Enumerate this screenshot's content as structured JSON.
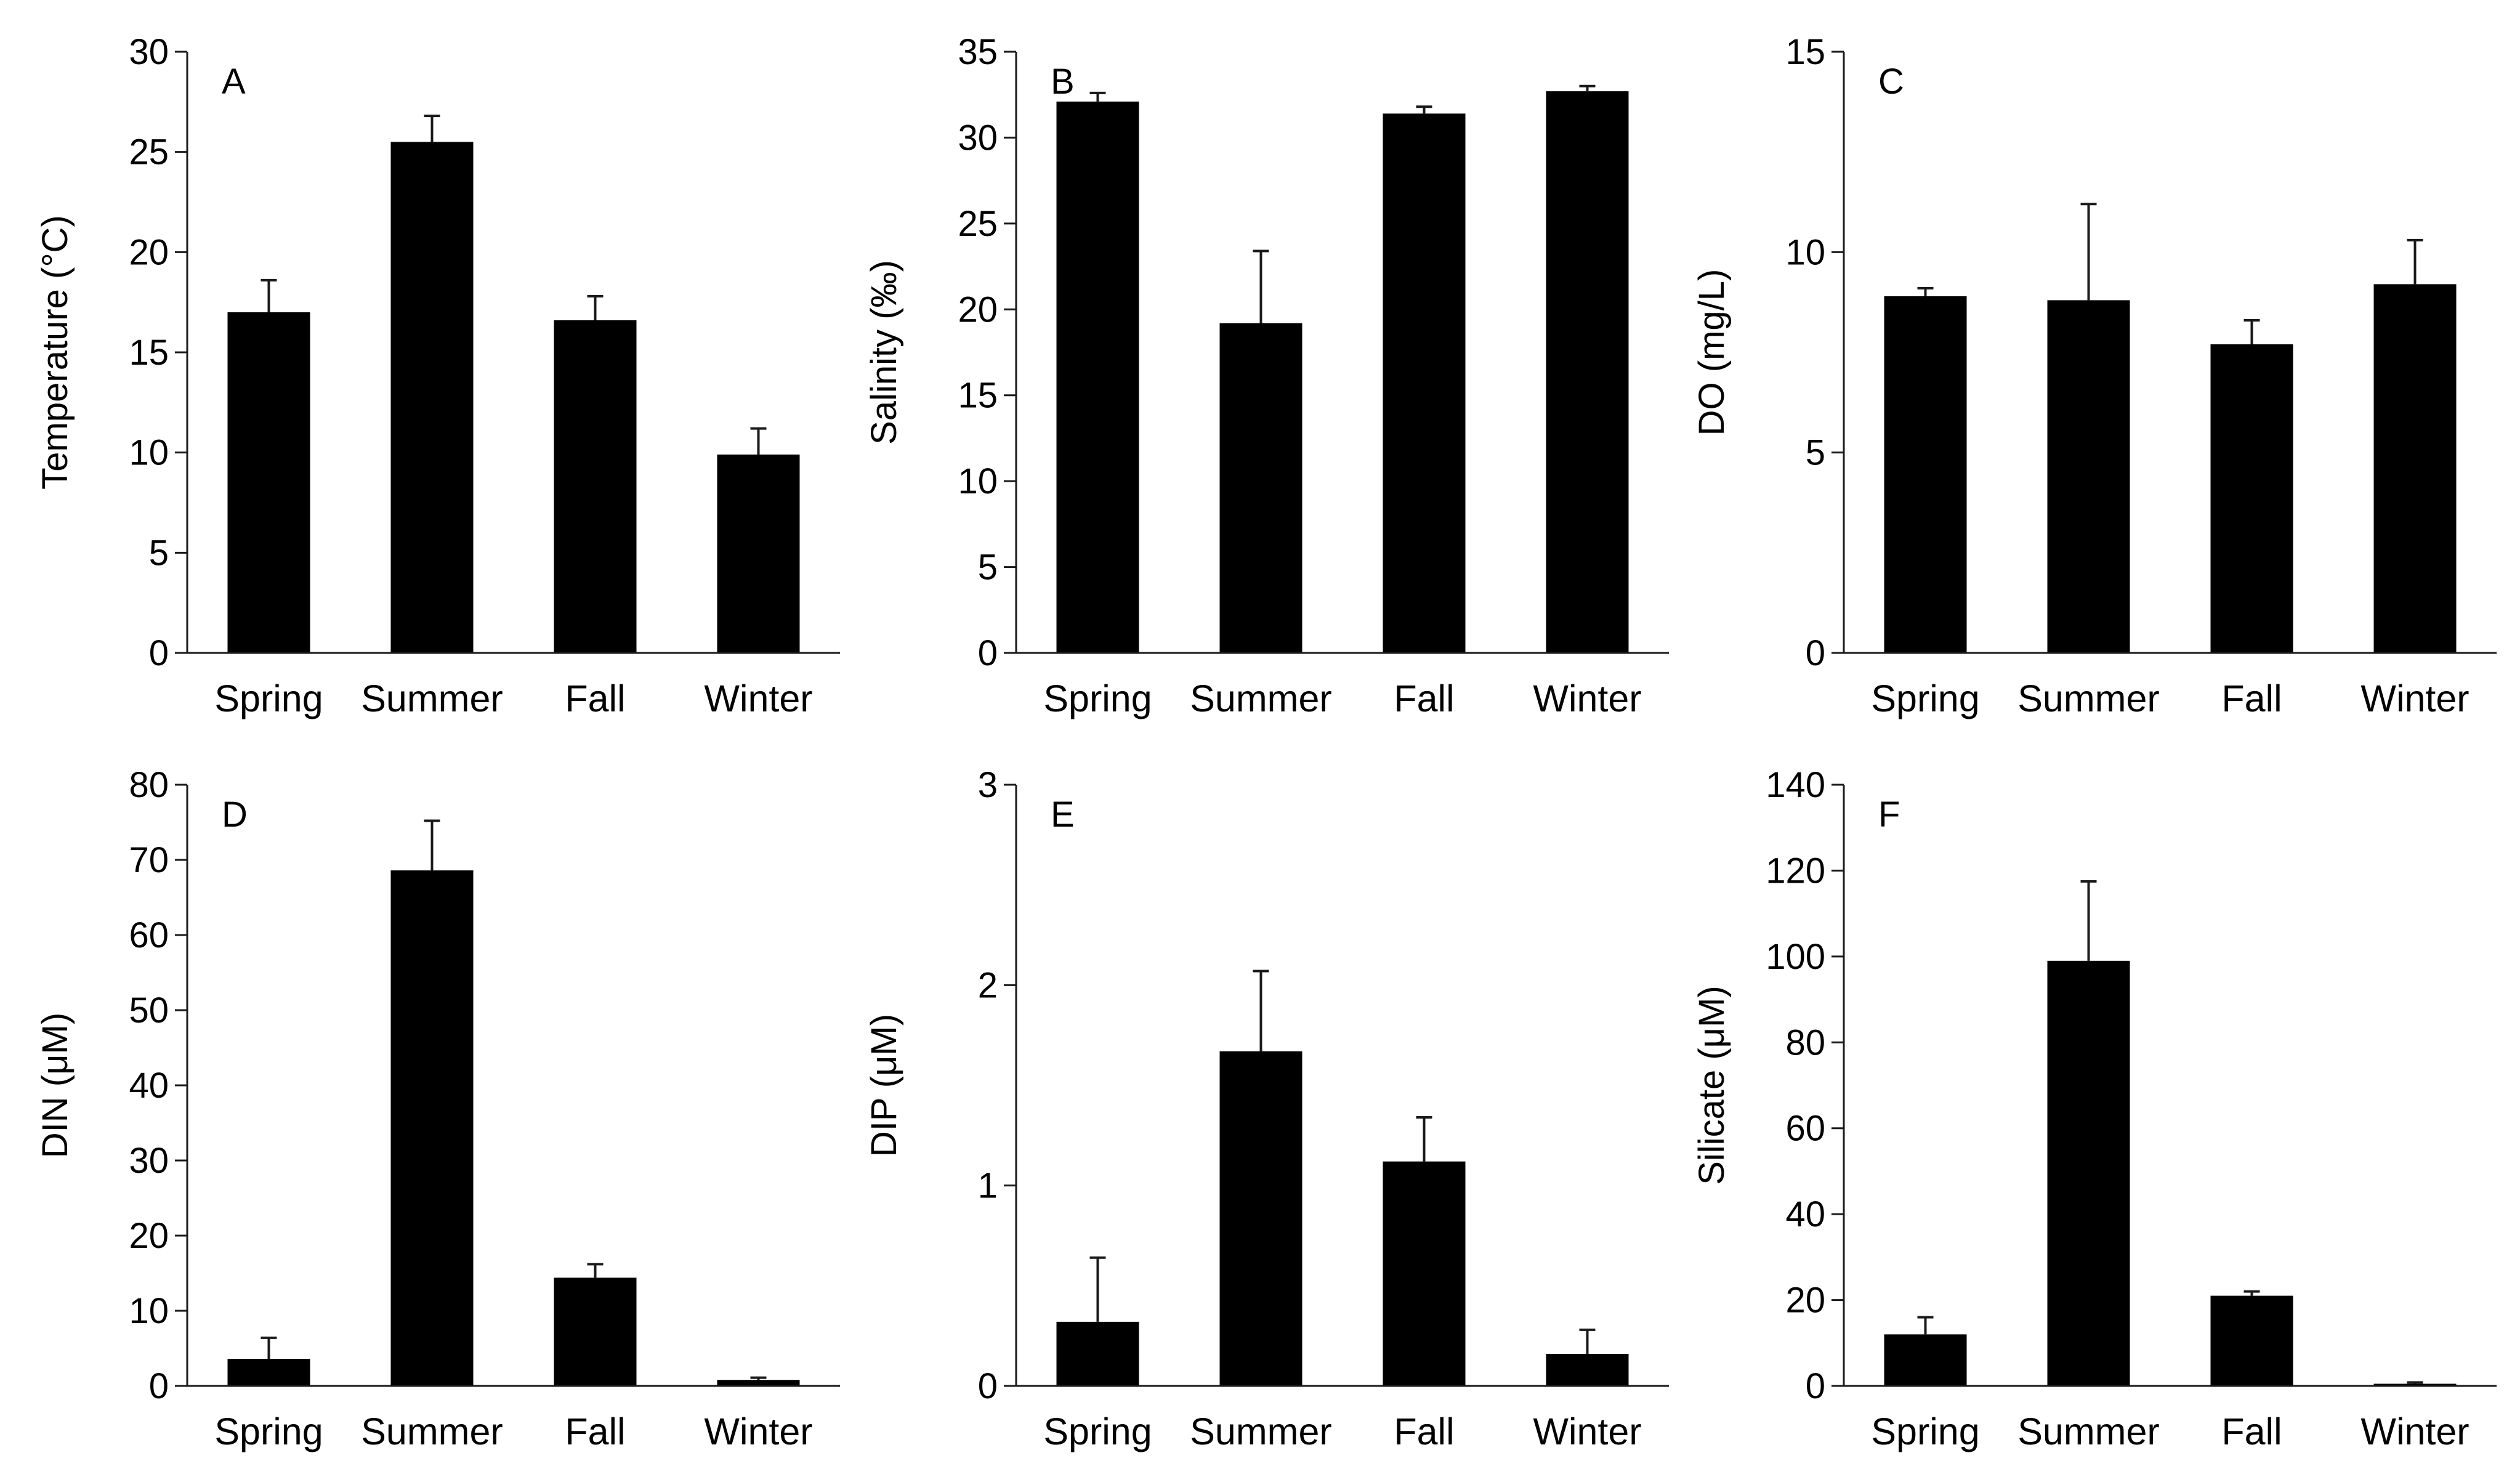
{
  "figure": {
    "bar_color": "#000000",
    "axis_color": "#1a1a1a"
  },
  "chart_data": [
    {
      "type": "bar",
      "panel_label": "A",
      "categories": [
        "Spring",
        "Summer",
        "Fall",
        "Winter"
      ],
      "values": [
        17.0,
        25.5,
        16.6,
        9.9
      ],
      "error": [
        1.6,
        1.3,
        1.2,
        1.3
      ],
      "ylabel": "Temperature (°C)",
      "xlabel": "",
      "ylim": [
        0,
        30
      ],
      "yticks": [
        0,
        5,
        10,
        15,
        20,
        25,
        30
      ]
    },
    {
      "type": "bar",
      "panel_label": "B",
      "categories": [
        "Spring",
        "Summer",
        "Fall",
        "Winter"
      ],
      "values": [
        32.1,
        19.2,
        31.4,
        32.7
      ],
      "error": [
        0.5,
        4.2,
        0.4,
        0.3
      ],
      "ylabel": "Salinity (‰)",
      "xlabel": "",
      "ylim": [
        0,
        35
      ],
      "yticks": [
        0,
        5,
        10,
        15,
        20,
        25,
        30,
        35
      ]
    },
    {
      "type": "bar",
      "panel_label": "C",
      "categories": [
        "Spring",
        "Summer",
        "Fall",
        "Winter"
      ],
      "values": [
        8.9,
        8.8,
        7.7,
        9.2
      ],
      "error": [
        0.2,
        2.4,
        0.6,
        1.1
      ],
      "ylabel": "DO (mg/L)",
      "xlabel": "",
      "ylim": [
        0,
        15
      ],
      "yticks": [
        0,
        5,
        10,
        15
      ]
    },
    {
      "type": "bar",
      "panel_label": "D",
      "categories": [
        "Spring",
        "Summer",
        "Fall",
        "Winter"
      ],
      "values": [
        3.6,
        68.6,
        14.4,
        0.8
      ],
      "error": [
        2.8,
        6.6,
        1.8,
        0.3
      ],
      "ylabel": "DIN (μM)",
      "xlabel": "",
      "ylim": [
        0,
        80
      ],
      "yticks": [
        0,
        10,
        20,
        30,
        40,
        50,
        60,
        70,
        80
      ]
    },
    {
      "type": "bar",
      "panel_label": "E",
      "categories": [
        "Spring",
        "Summer",
        "Fall",
        "Winter"
      ],
      "values": [
        0.32,
        1.67,
        1.12,
        0.16
      ],
      "error": [
        0.32,
        0.4,
        0.22,
        0.12
      ],
      "ylabel": "DIP (μM)",
      "xlabel": "",
      "ylim": [
        0,
        3
      ],
      "yticks": [
        0,
        1,
        2,
        3
      ]
    },
    {
      "type": "bar",
      "panel_label": "F",
      "categories": [
        "Spring",
        "Summer",
        "Fall",
        "Winter"
      ],
      "values": [
        12,
        99,
        21,
        0.5
      ],
      "error": [
        4,
        18.5,
        1,
        0.3
      ],
      "ylabel": "Silicate (μM)",
      "xlabel": "",
      "ylim": [
        0,
        140
      ],
      "yticks": [
        0,
        20,
        40,
        60,
        80,
        100,
        120,
        140
      ]
    }
  ]
}
